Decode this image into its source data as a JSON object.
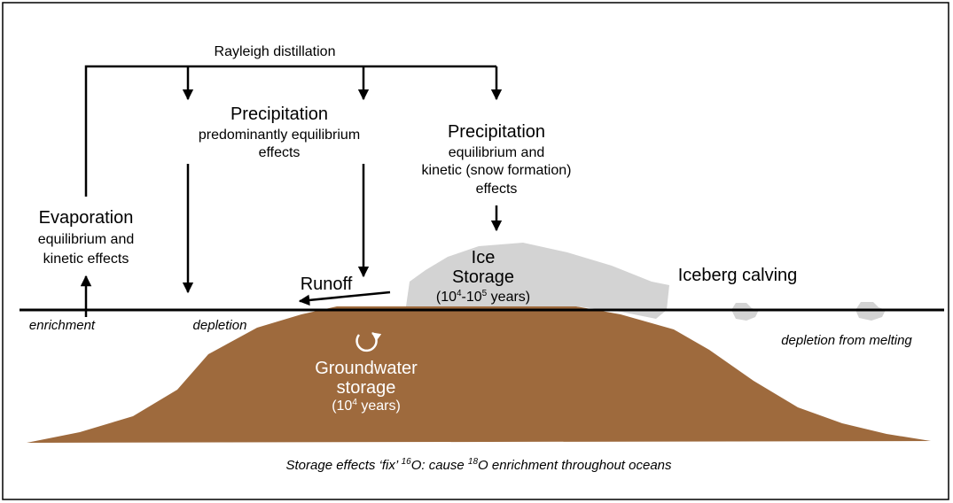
{
  "top_cycle": {
    "label": "Rayleigh distillation"
  },
  "precipitation_left": {
    "title": "Precipitation",
    "line1": "predominantly equilibrium",
    "line2": "effects"
  },
  "precipitation_right": {
    "title": "Precipitation",
    "line1": "equilibrium and",
    "line2": "kinetic (snow formation)",
    "line3": "effects"
  },
  "evaporation": {
    "title": "Evaporation",
    "line1": "equilibrium and",
    "line2": "kinetic effects"
  },
  "runoff": {
    "label": "Runoff"
  },
  "ice_storage": {
    "line1": "Ice",
    "line2": "Storage",
    "duration": {
      "a": "(10",
      "exp1": "4",
      "b": "-10",
      "exp2": "5",
      "c": " years)"
    }
  },
  "iceberg": {
    "label": "Iceberg calving",
    "note": "depletion from melting"
  },
  "ocean": {
    "left_label": "enrichment",
    "mid_label": "depletion"
  },
  "groundwater": {
    "line1": "Groundwater",
    "line2": "storage",
    "duration": {
      "a": "(10",
      "exp": "4",
      "b": " years)"
    }
  },
  "caption": {
    "a": "Storage effects ‘fix’ ",
    "exp1": "16",
    "b": "O: cause ",
    "exp2": "18",
    "c": "O enrichment throughout oceans"
  }
}
